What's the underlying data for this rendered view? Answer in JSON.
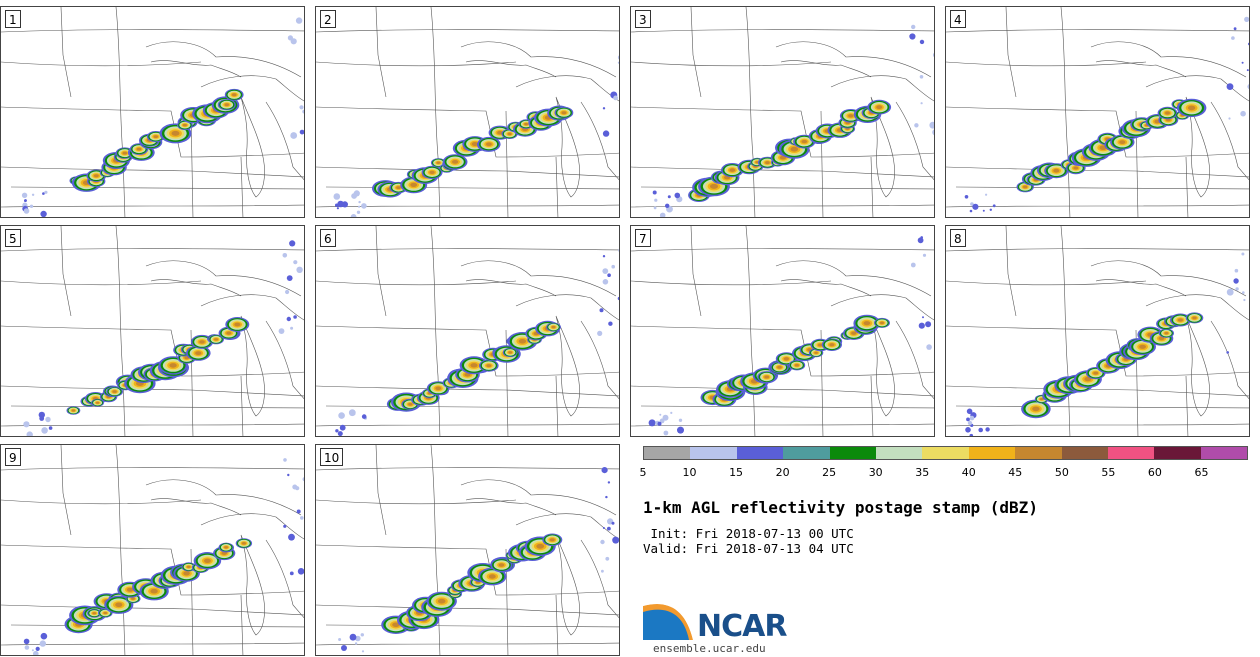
{
  "panels": [
    {
      "label": "1"
    },
    {
      "label": "2"
    },
    {
      "label": "3"
    },
    {
      "label": "4"
    },
    {
      "label": "5"
    },
    {
      "label": "6"
    },
    {
      "label": "7"
    },
    {
      "label": "8"
    },
    {
      "label": "9"
    },
    {
      "label": "10"
    }
  ],
  "colorbar": {
    "ticks": [
      "5",
      "10",
      "15",
      "20",
      "25",
      "30",
      "35",
      "40",
      "45",
      "50",
      "55",
      "60",
      "65"
    ],
    "colors": [
      "#a6a6a6",
      "#b9c4ec",
      "#5a5fd8",
      "#4f9c9e",
      "#0b8a0b",
      "#c3dfbf",
      "#ecdc62",
      "#f0b21a",
      "#c6872f",
      "#8c5a3c",
      "#f05282",
      "#6a1738",
      "#b04caa"
    ]
  },
  "title": "1-km AGL reflectivity postage stamp (dBZ)",
  "init_line": " Init: Fri 2018-07-13 00 UTC",
  "valid_line": "Valid: Fri 2018-07-13 04 UTC",
  "logo": {
    "text": "NCAR",
    "website": "ensemble.ucar.edu"
  }
}
